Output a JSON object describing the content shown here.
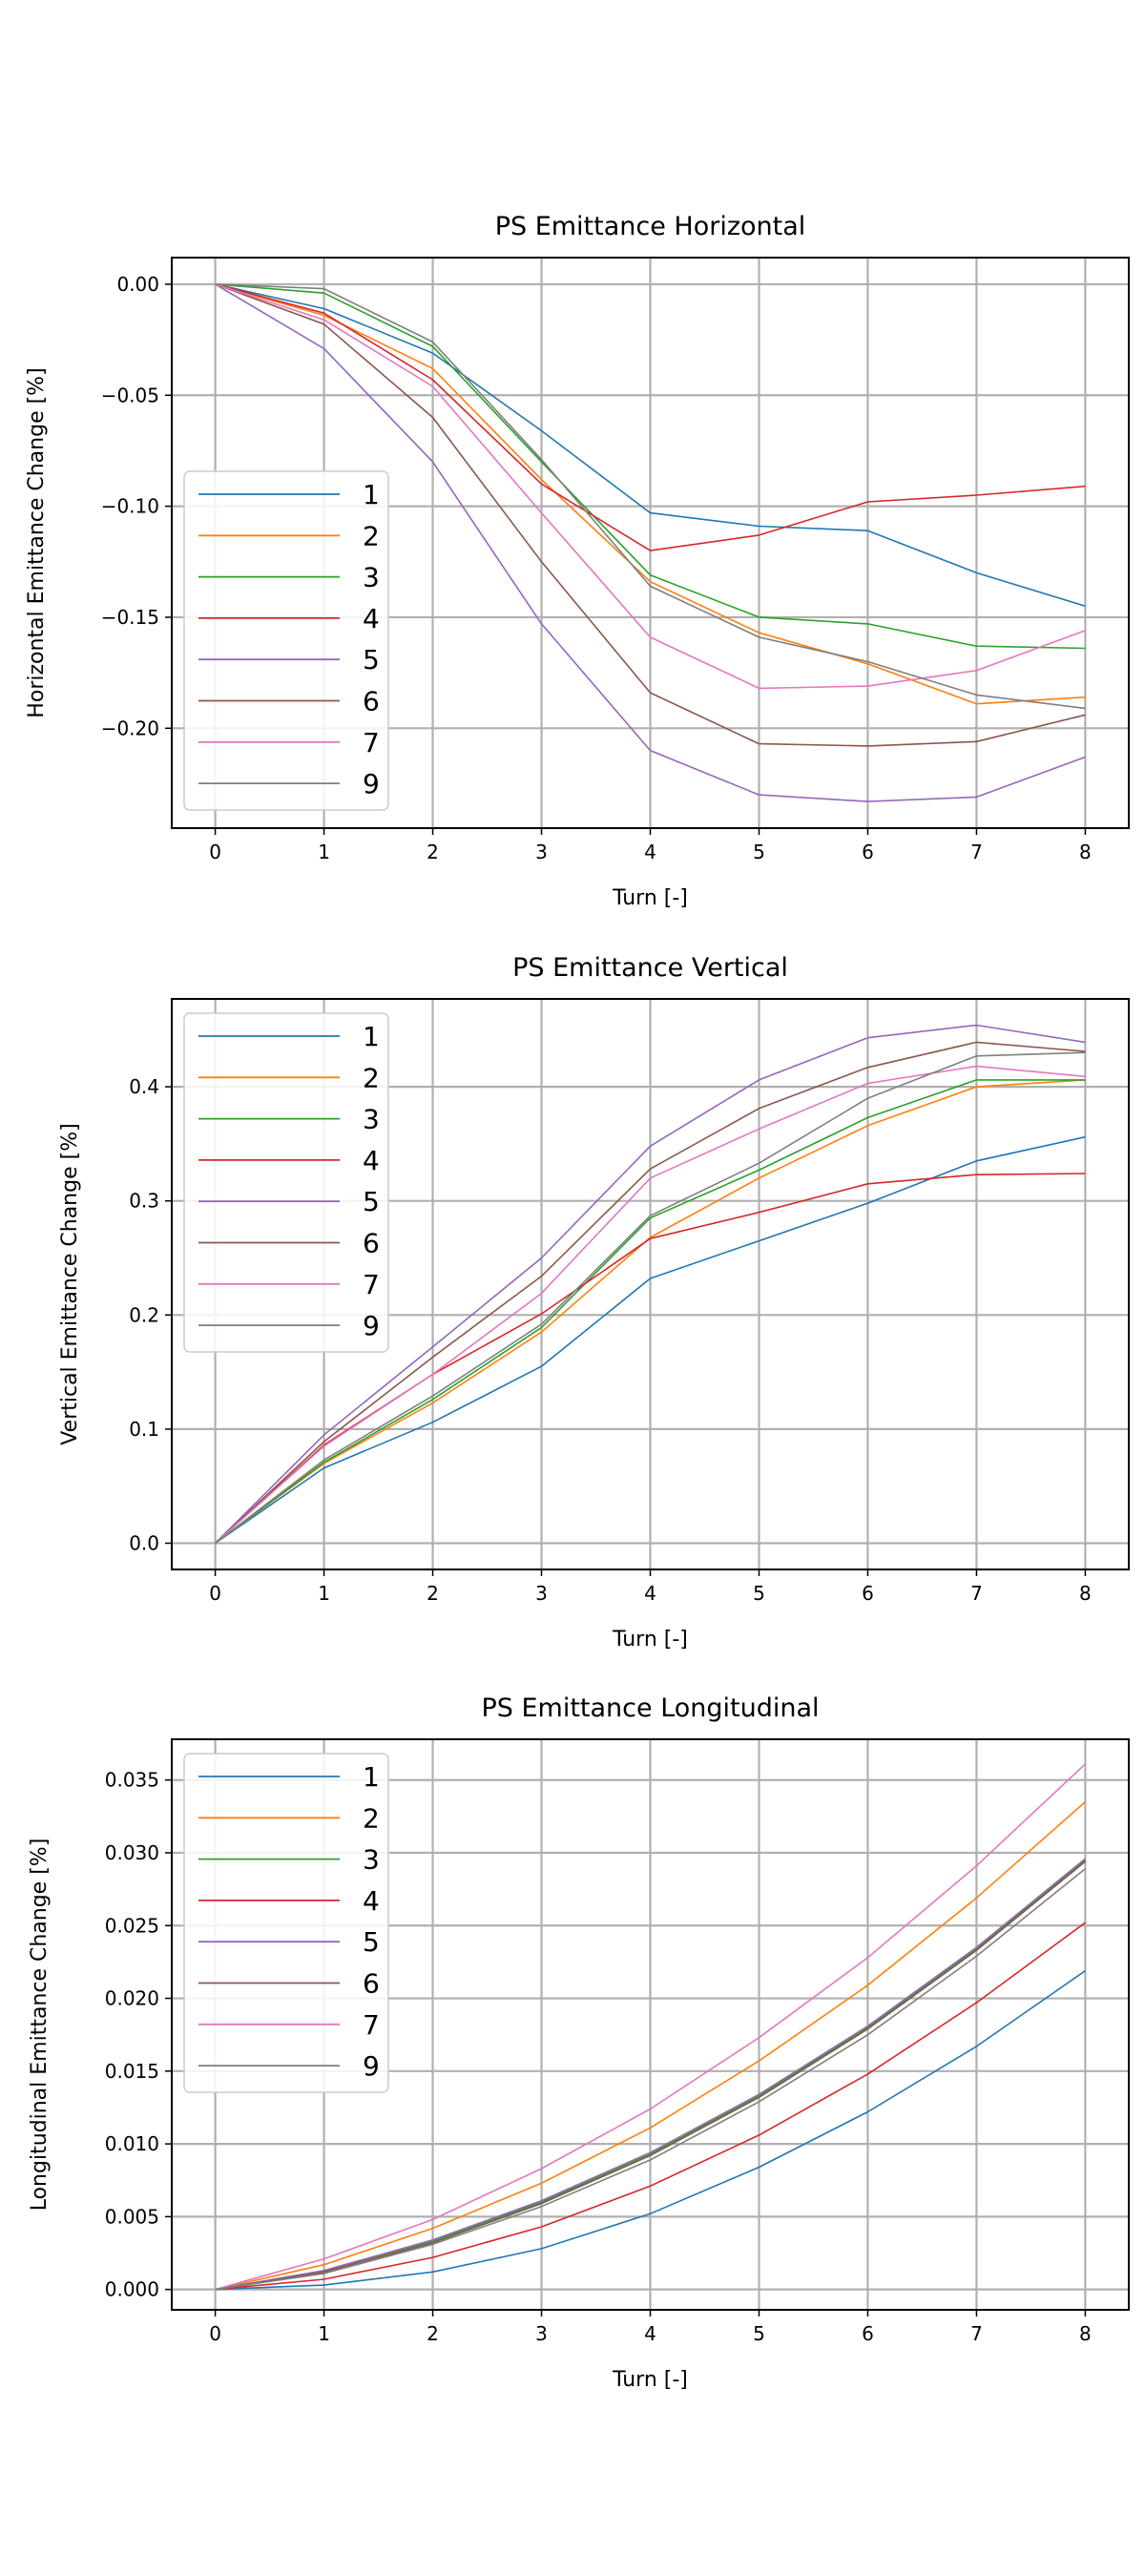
{
  "chart_data": [
    {
      "type": "line",
      "title": "PS Emittance Horizontal",
      "xlabel": "Turn [-]",
      "ylabel": "Horizontal Emittance Change [%]",
      "x": [
        0,
        1,
        2,
        3,
        4,
        5,
        6,
        7,
        8
      ],
      "xlim": [
        -0.4,
        8.4
      ],
      "ylim": [
        -0.245,
        0.012
      ],
      "xticks": [
        0,
        1,
        2,
        3,
        4,
        5,
        6,
        7,
        8
      ],
      "yticks": [
        0.0,
        -0.05,
        -0.1,
        -0.15,
        -0.2
      ],
      "ytick_labels": [
        "0.00",
        "−0.05",
        "−0.10",
        "−0.15",
        "−0.20"
      ],
      "grid": true,
      "legend_position": "left",
      "series": [
        {
          "name": "1",
          "color": "#1f77b4",
          "values": [
            0,
            -0.011,
            -0.031,
            -0.066,
            -0.103,
            -0.109,
            -0.111,
            -0.13,
            -0.145
          ]
        },
        {
          "name": "2",
          "color": "#ff7f0e",
          "values": [
            0,
            -0.014,
            -0.038,
            -0.088,
            -0.134,
            -0.157,
            -0.171,
            -0.189,
            -0.186
          ]
        },
        {
          "name": "3",
          "color": "#2ca02c",
          "values": [
            0,
            -0.004,
            -0.028,
            -0.08,
            -0.131,
            -0.15,
            -0.153,
            -0.163,
            -0.164
          ]
        },
        {
          "name": "4",
          "color": "#d62728",
          "values": [
            0,
            -0.013,
            -0.043,
            -0.09,
            -0.12,
            -0.113,
            -0.098,
            -0.095,
            -0.091
          ]
        },
        {
          "name": "5",
          "color": "#9467bd",
          "values": [
            0,
            -0.029,
            -0.08,
            -0.153,
            -0.21,
            -0.23,
            -0.233,
            -0.231,
            -0.213
          ]
        },
        {
          "name": "6",
          "color": "#8c564b",
          "values": [
            0,
            -0.018,
            -0.06,
            -0.125,
            -0.184,
            -0.207,
            -0.208,
            -0.206,
            -0.194
          ]
        },
        {
          "name": "7",
          "color": "#e377c2",
          "values": [
            0,
            -0.016,
            -0.046,
            -0.103,
            -0.159,
            -0.182,
            -0.181,
            -0.174,
            -0.156
          ]
        },
        {
          "name": "9",
          "color": "#7f7f7f",
          "values": [
            0,
            -0.002,
            -0.026,
            -0.079,
            -0.136,
            -0.159,
            -0.17,
            -0.185,
            -0.191
          ]
        }
      ]
    },
    {
      "type": "line",
      "title": "PS Emittance Vertical",
      "xlabel": "Turn [-]",
      "ylabel": "Vertical Emittance Change [%]",
      "x": [
        0,
        1,
        2,
        3,
        4,
        5,
        6,
        7,
        8
      ],
      "xlim": [
        -0.4,
        8.4
      ],
      "ylim": [
        -0.023,
        0.477
      ],
      "xticks": [
        0,
        1,
        2,
        3,
        4,
        5,
        6,
        7,
        8
      ],
      "yticks": [
        0.0,
        0.1,
        0.2,
        0.3,
        0.4
      ],
      "ytick_labels": [
        "0.0",
        "0.1",
        "0.2",
        "0.3",
        "0.4"
      ],
      "grid": true,
      "legend_position": "upper left",
      "series": [
        {
          "name": "1",
          "color": "#1f77b4",
          "values": [
            0,
            0.066,
            0.106,
            0.155,
            0.232,
            0.265,
            0.298,
            0.335,
            0.356
          ]
        },
        {
          "name": "2",
          "color": "#ff7f0e",
          "values": [
            0,
            0.07,
            0.123,
            0.185,
            0.268,
            0.32,
            0.366,
            0.4,
            0.406
          ]
        },
        {
          "name": "3",
          "color": "#2ca02c",
          "values": [
            0,
            0.071,
            0.126,
            0.189,
            0.285,
            0.327,
            0.373,
            0.406,
            0.406
          ]
        },
        {
          "name": "4",
          "color": "#d62728",
          "values": [
            0,
            0.086,
            0.148,
            0.201,
            0.267,
            0.29,
            0.315,
            0.323,
            0.324
          ]
        },
        {
          "name": "5",
          "color": "#9467bd",
          "values": [
            0,
            0.095,
            0.172,
            0.25,
            0.348,
            0.406,
            0.443,
            0.454,
            0.439
          ]
        },
        {
          "name": "6",
          "color": "#8c564b",
          "values": [
            0,
            0.089,
            0.163,
            0.234,
            0.328,
            0.381,
            0.417,
            0.439,
            0.431
          ]
        },
        {
          "name": "7",
          "color": "#e377c2",
          "values": [
            0,
            0.085,
            0.148,
            0.219,
            0.32,
            0.363,
            0.403,
            0.418,
            0.409
          ]
        },
        {
          "name": "9",
          "color": "#7f7f7f",
          "values": [
            0,
            0.073,
            0.129,
            0.192,
            0.287,
            0.333,
            0.39,
            0.427,
            0.43
          ]
        }
      ]
    },
    {
      "type": "line",
      "title": "PS Emittance Longitudinal",
      "xlabel": "Turn [-]",
      "ylabel": "Longitudinal Emittance Change [%]",
      "x": [
        0,
        1,
        2,
        3,
        4,
        5,
        6,
        7,
        8
      ],
      "xlim": [
        -0.4,
        8.4
      ],
      "ylim": [
        -0.0014,
        0.0378
      ],
      "xticks": [
        0,
        1,
        2,
        3,
        4,
        5,
        6,
        7,
        8
      ],
      "yticks": [
        0.0,
        0.005,
        0.01,
        0.015,
        0.02,
        0.025,
        0.03,
        0.035
      ],
      "ytick_labels": [
        "0.000",
        "0.005",
        "0.010",
        "0.015",
        "0.020",
        "0.025",
        "0.030",
        "0.035"
      ],
      "grid": true,
      "legend_position": "upper left",
      "series": [
        {
          "name": "1",
          "color": "#1f77b4",
          "values": [
            0,
            0.0003,
            0.0012,
            0.0028,
            0.0052,
            0.0084,
            0.0122,
            0.0167,
            0.0219
          ]
        },
        {
          "name": "2",
          "color": "#ff7f0e",
          "values": [
            0,
            0.0017,
            0.0042,
            0.0073,
            0.0111,
            0.0157,
            0.0209,
            0.0269,
            0.0335
          ]
        },
        {
          "name": "3",
          "color": "#2ca02c",
          "values": [
            0,
            0.0012,
            0.0033,
            0.006,
            0.0093,
            0.0133,
            0.018,
            0.0234,
            0.0295
          ]
        },
        {
          "name": "4",
          "color": "#d62728",
          "values": [
            0,
            0.0007,
            0.0022,
            0.0043,
            0.0071,
            0.0106,
            0.0148,
            0.0197,
            0.0252
          ]
        },
        {
          "name": "5",
          "color": "#9467bd",
          "values": [
            0,
            0.0013,
            0.0034,
            0.0061,
            0.0094,
            0.0134,
            0.0181,
            0.0235,
            0.0296
          ]
        },
        {
          "name": "6",
          "color": "#8c564b",
          "values": [
            0,
            0.0012,
            0.0032,
            0.0059,
            0.0092,
            0.0132,
            0.0179,
            0.0233,
            0.0294
          ]
        },
        {
          "name": "7",
          "color": "#e377c2",
          "values": [
            0,
            0.0021,
            0.0048,
            0.0083,
            0.0124,
            0.0173,
            0.0228,
            0.0291,
            0.0361
          ]
        },
        {
          "name": "9",
          "color": "#7f7f7f",
          "values": [
            0,
            0.0011,
            0.0031,
            0.0057,
            0.0089,
            0.0129,
            0.0175,
            0.0229,
            0.0289
          ]
        }
      ]
    }
  ]
}
